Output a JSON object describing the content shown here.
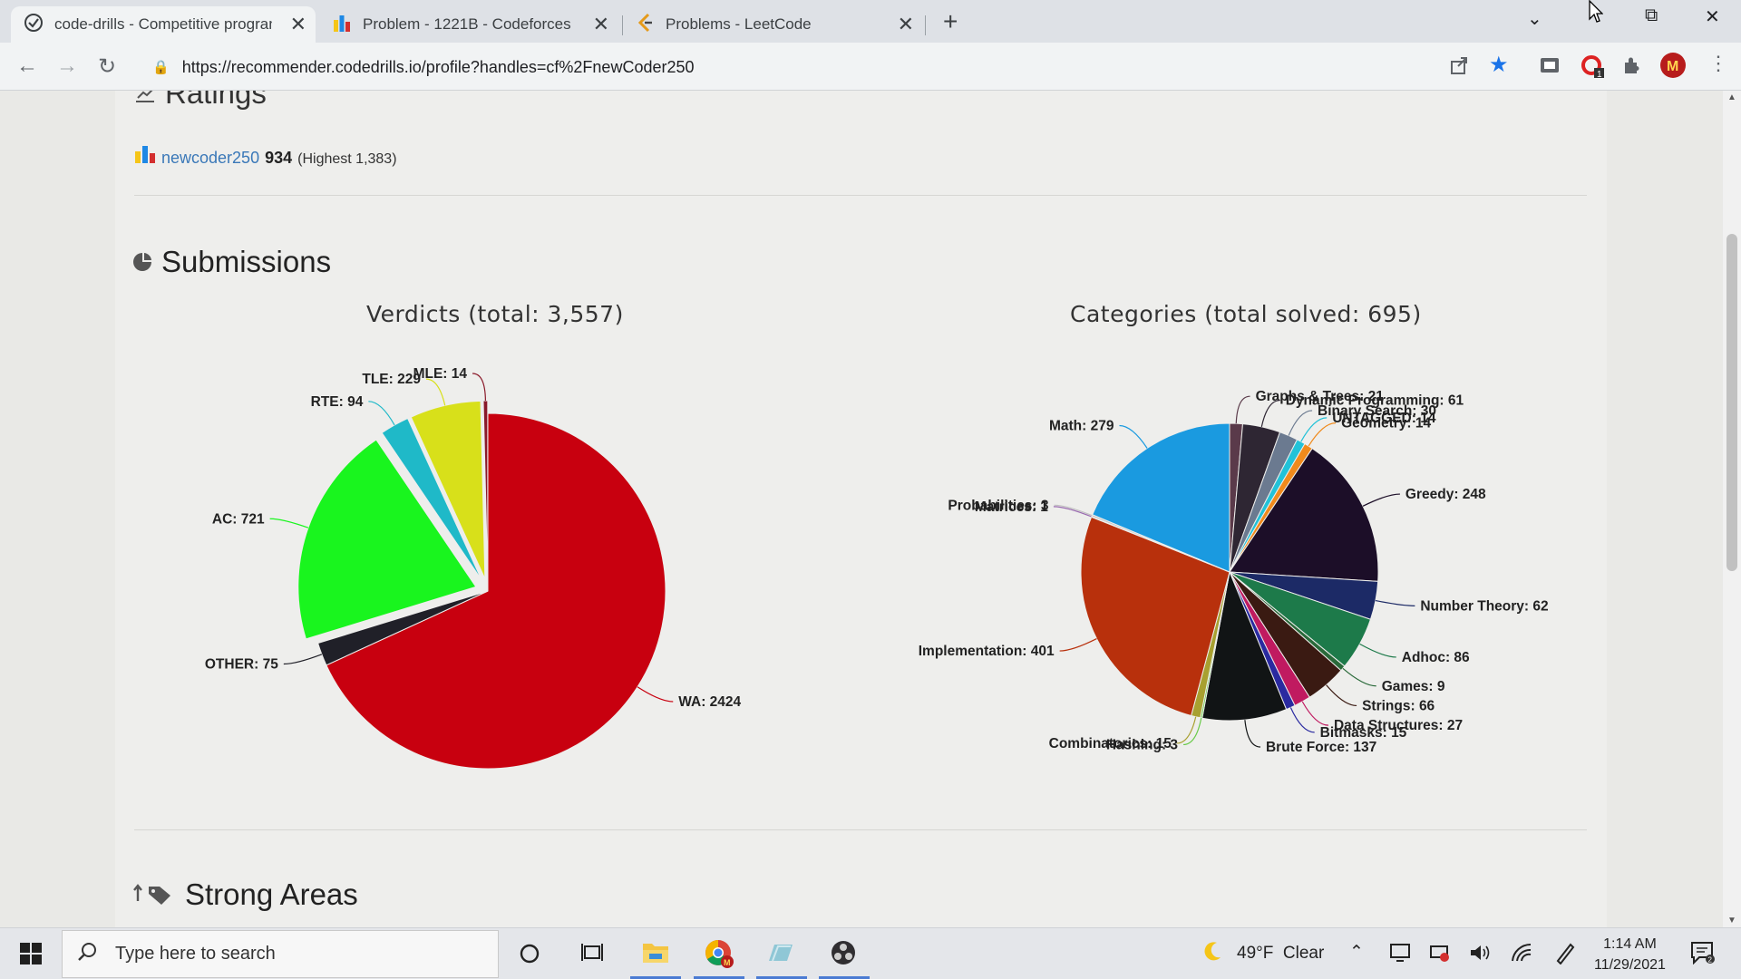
{
  "browser": {
    "tabs": [
      {
        "title": "code-drills - Competitive program",
        "active": true
      },
      {
        "title": "Problem - 1221B - Codeforces",
        "active": false
      },
      {
        "title": "Problems - LeetCode",
        "active": false
      }
    ],
    "url": "https://recommender.codedrills.io/profile?handles=cf%2FnewCoder250"
  },
  "ratings": {
    "heading": "Ratings",
    "handle": "newcoder250",
    "score": "934",
    "highest": "(Highest 1,383)"
  },
  "submissions": {
    "heading": "Submissions"
  },
  "strong_areas": {
    "heading": "Strong Areas"
  },
  "chart_data": [
    {
      "type": "pie",
      "title": "Verdicts (total: 3,557)",
      "slices": [
        {
          "label": "WA: 2424",
          "value": 2424,
          "color": "#c8000f",
          "sliced": false
        },
        {
          "label": "OTHER: 75",
          "value": 75,
          "color": "#202028",
          "sliced": false
        },
        {
          "label": "AC: 721",
          "value": 721,
          "color": "#19f51e",
          "sliced": true
        },
        {
          "label": "RTE: 94",
          "value": 94,
          "color": "#1fb9c8",
          "sliced": true
        },
        {
          "label": "TLE: 229",
          "value": 229,
          "color": "#d8e01a",
          "sliced": true
        },
        {
          "label": "MLE: 14",
          "value": 14,
          "color": "#8a1a2a",
          "sliced": true
        }
      ]
    },
    {
      "type": "pie",
      "title": "Categories (total solved: 695)",
      "slices": [
        {
          "label": "Graphs & Trees: 21",
          "value": 21,
          "color": "#5a3a4a"
        },
        {
          "label": "Dynamic Programming: 61",
          "value": 61,
          "color": "#2e2633"
        },
        {
          "label": "Binary Search: 30",
          "value": 30,
          "color": "#6b7a90"
        },
        {
          "label": "UNTAGGED: 14",
          "value": 14,
          "color": "#22c2d8"
        },
        {
          "label": "Geometry: 14",
          "value": 14,
          "color": "#f08a1c"
        },
        {
          "label": "Greedy: 248",
          "value": 248,
          "color": "#1c0e28"
        },
        {
          "label": "Number Theory: 62",
          "value": 62,
          "color": "#1c2a66"
        },
        {
          "label": "Adhoc: 86",
          "value": 86,
          "color": "#1d7a4a"
        },
        {
          "label": "Games: 9",
          "value": 9,
          "color": "#2a6a3a"
        },
        {
          "label": "Strings: 66",
          "value": 66,
          "color": "#3a1a12"
        },
        {
          "label": "Data Structures: 27",
          "value": 27,
          "color": "#c01a60"
        },
        {
          "label": "Bitmasks: 15",
          "value": 15,
          "color": "#2a2aa0"
        },
        {
          "label": "Brute Force: 137",
          "value": 137,
          "color": "#111415"
        },
        {
          "label": "Hashing: 3",
          "value": 3,
          "color": "#6acb4a"
        },
        {
          "label": "Combinatorics: 15",
          "value": 15,
          "color": "#a8a030"
        },
        {
          "label": "Implementation: 401",
          "value": 401,
          "color": "#b8300c"
        },
        {
          "label": "Matrices: 1",
          "value": 1,
          "color": "#9a6ab0"
        },
        {
          "label": "Probabilities: 3",
          "value": 3,
          "color": "#c0c0c0"
        },
        {
          "label": "Math: 279",
          "value": 279,
          "color": "#1a9ae0"
        }
      ]
    }
  ],
  "taskbar": {
    "search_placeholder": "Type here to search",
    "weather": "49°F  Clear",
    "time": "1:14 AM",
    "date": "11/29/2021"
  },
  "icons": [
    "check-circle-icon",
    "bar-chart-icon",
    "leetcode-icon",
    "back-icon",
    "forward-icon",
    "reload-icon",
    "lock-icon",
    "share-icon",
    "star-icon",
    "extension-icon",
    "profile-icon",
    "menu-icon",
    "windows-icon",
    "search-icon",
    "cortana-icon",
    "task-view-icon",
    "file-explorer-icon",
    "chrome-icon",
    "obs-icon",
    "moon-icon",
    "notification-icon"
  ]
}
